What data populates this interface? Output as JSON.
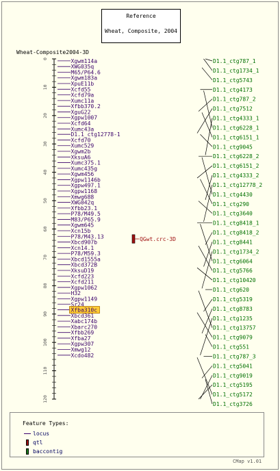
{
  "reference": {
    "label": "Reference",
    "map_set": "Wheat, Composite, 2004"
  },
  "map": {
    "name": "Wheat-Composite2004-3D",
    "start": 0,
    "end": 120,
    "tick_labels": [
      "0",
      "10",
      "20",
      "30",
      "40",
      "50",
      "60",
      "70",
      "80",
      "90",
      "100",
      "110",
      "120"
    ],
    "markers": [
      {
        "name": "Xgwm114a",
        "pos": 0.7
      },
      {
        "name": "XWG035q",
        "pos": 2.7
      },
      {
        "name": "M65/P64.6",
        "pos": 4.7
      },
      {
        "name": "Xgwm183a",
        "pos": 6.7
      },
      {
        "name": "XpuE11b",
        "pos": 8.7
      },
      {
        "name": "Xcfd55",
        "pos": 10.7
      },
      {
        "name": "Xcfd79a",
        "pos": 12.7
      },
      {
        "name": "Xumc11a",
        "pos": 14.7
      },
      {
        "name": "Xfbb370.2",
        "pos": 16.7
      },
      {
        "name": "XguG22",
        "pos": 18.7
      },
      {
        "name": "Xgpw1007",
        "pos": 20.7
      },
      {
        "name": "Xcfd64",
        "pos": 22.7
      },
      {
        "name": "Xumc43a",
        "pos": 24.7
      },
      {
        "name": "D1.1_ctg12778-1",
        "pos": 26.6
      },
      {
        "name": "Xcfd70",
        "pos": 28.6
      },
      {
        "name": "Xumc529",
        "pos": 30.6
      },
      {
        "name": "Xgwm2b",
        "pos": 32.6
      },
      {
        "name": "XksuA6",
        "pos": 34.6
      },
      {
        "name": "Xumc375.1",
        "pos": 36.6
      },
      {
        "name": "Xumc435g",
        "pos": 38.6
      },
      {
        "name": "Xgwm456",
        "pos": 40.6
      },
      {
        "name": "Xgpw1146b",
        "pos": 42.6
      },
      {
        "name": "Xgpw497.1",
        "pos": 44.6
      },
      {
        "name": "Xgpw1168",
        "pos": 46.6
      },
      {
        "name": "Xmwg688",
        "pos": 48.6
      },
      {
        "name": "XWG042q",
        "pos": 50.6
      },
      {
        "name": "Xfbb23.1",
        "pos": 52.6
      },
      {
        "name": "P78/M49.5",
        "pos": 54.6
      },
      {
        "name": "M83/P65.9",
        "pos": 56.6
      },
      {
        "name": "Xgwm645",
        "pos": 58.6
      },
      {
        "name": "Xcn15b",
        "pos": 60.6
      },
      {
        "name": "P78/M43.13",
        "pos": 62.6
      },
      {
        "name": "Xbcd907b",
        "pos": 64.6
      },
      {
        "name": "Xcn14.1",
        "pos": 66.6
      },
      {
        "name": "P78/M59.3",
        "pos": 68.6
      },
      {
        "name": "Xbcd1555a",
        "pos": 70.6
      },
      {
        "name": "Xbcd372B",
        "pos": 72.6
      },
      {
        "name": "XksuD19",
        "pos": 74.6
      },
      {
        "name": "Xcfd223",
        "pos": 76.6
      },
      {
        "name": "Xcfd211",
        "pos": 78.6
      },
      {
        "name": "Xgpw1062",
        "pos": 80.6
      },
      {
        "name": "H32",
        "pos": 82.6
      },
      {
        "name": "Xgpw1149",
        "pos": 84.6
      },
      {
        "name": "Sr24",
        "pos": 86.5
      },
      {
        "name": "Xfba310c",
        "pos": 88.5,
        "highlight": true
      },
      {
        "name": "Xbcd361",
        "pos": 90.5
      },
      {
        "name": "Xabc174b",
        "pos": 92.5
      },
      {
        "name": "Xbarc270",
        "pos": 94.5
      },
      {
        "name": "Xfbb269",
        "pos": 96.5
      },
      {
        "name": "Xfba27",
        "pos": 98.5
      },
      {
        "name": "Xgpw307",
        "pos": 100.5
      },
      {
        "name": "Xmwg12",
        "pos": 102.5
      },
      {
        "name": "Xcdo482",
        "pos": 104.5
      }
    ],
    "qtl": {
      "name": "QGwt.crc-3D",
      "start": 62,
      "end": 65
    }
  },
  "contigs": [
    "D1.1_ctg787_1",
    "D1.1_ctg1734_1",
    "D1.1_ctg5743",
    "D1.1_ctg4173",
    "D1.1_ctg787_2",
    "D1.1_ctg7512",
    "D1.1_ctg4333_1",
    "D1.1_ctg6228_1",
    "D1.1_ctg6151_1",
    "D1.1_ctg9045",
    "D1.1_ctg6228_2",
    "D1.1_ctg6151_2",
    "D1.1_ctg4333_2",
    "D1.1_ctg12778_2",
    "D1.1_ctg4430",
    "D1.1_ctg290",
    "D1.1_ctg3640",
    "D1.1_ctg8418_1",
    "D1.1_ctg8418_2",
    "D1.1_ctg8441",
    "D1.1_ctg1734_2",
    "D1.1_ctg6064",
    "D1.1_ctg5766",
    "D1.1_ctg10420",
    "D1.1_ctg620",
    "D1.1_ctg5319",
    "D1.1_ctg8783",
    "D1.1_ctg1235",
    "D1.1_ctg13757",
    "D1.1_ctg9079",
    "D1.1_ctg551",
    "D1.1_ctg787_3",
    "D1.1_ctg5041",
    "D1.1_ctg9019",
    "D1.1_ctg5195",
    "D1.1_ctg5172",
    "D1.1_ctg3726"
  ],
  "legend": {
    "title": "Feature Types:",
    "items": [
      {
        "label": "locus",
        "swatch": "line",
        "color": "#3a006a"
      },
      {
        "label": "qtl",
        "swatch": "box",
        "color": "#a01010"
      },
      {
        "label": "baccontig",
        "swatch": "box",
        "color": "#1a7a1a"
      }
    ]
  },
  "footer": "CMap v1.01",
  "colors": {
    "marker_text": "#3a006a",
    "contig_text": "#007000",
    "qtl": "#a01010",
    "highlight_bg": "#ffcc33"
  }
}
